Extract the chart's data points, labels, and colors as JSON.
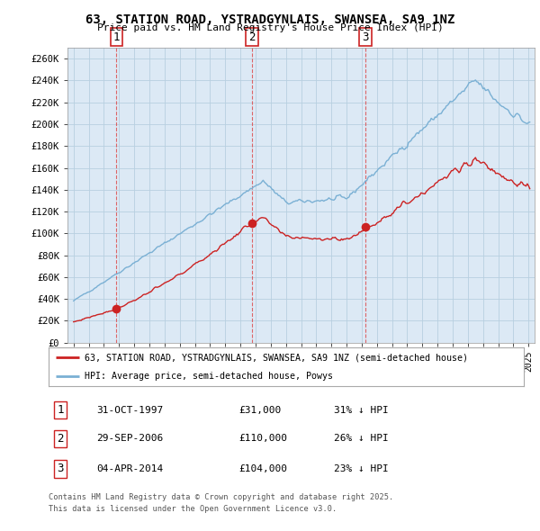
{
  "title": "63, STATION ROAD, YSTRADGYNLAIS, SWANSEA, SA9 1NZ",
  "subtitle": "Price paid vs. HM Land Registry's House Price Index (HPI)",
  "legend_line1": "63, STATION ROAD, YSTRADGYNLAIS, SWANSEA, SA9 1NZ (semi-detached house)",
  "legend_line2": "HPI: Average price, semi-detached house, Powys",
  "footer1": "Contains HM Land Registry data © Crown copyright and database right 2025.",
  "footer2": "This data is licensed under the Open Government Licence v3.0.",
  "transactions": [
    {
      "num": 1,
      "date": "31-OCT-1997",
      "price": "£31,000",
      "pct": "31% ↓ HPI",
      "x": 1997.83
    },
    {
      "num": 2,
      "date": "29-SEP-2006",
      "price": "£110,000",
      "pct": "26% ↓ HPI",
      "x": 2006.75
    },
    {
      "num": 3,
      "date": "04-APR-2014",
      "price": "£104,000",
      "pct": "23% ↓ HPI",
      "x": 2014.25
    }
  ],
  "ylim": [
    0,
    270000
  ],
  "yticks": [
    0,
    20000,
    40000,
    60000,
    80000,
    100000,
    120000,
    140000,
    160000,
    180000,
    200000,
    220000,
    240000,
    260000
  ],
  "ytick_labels": [
    "£0",
    "£20K",
    "£40K",
    "£60K",
    "£80K",
    "£100K",
    "£120K",
    "£140K",
    "£160K",
    "£180K",
    "£200K",
    "£220K",
    "£240K",
    "£260K"
  ],
  "hpi_color": "#7ab0d4",
  "price_color": "#cc2222",
  "vline_color": "#dd4444",
  "background_color": "#ffffff",
  "plot_bg_color": "#dce9f5",
  "grid_color": "#b8cfe0"
}
